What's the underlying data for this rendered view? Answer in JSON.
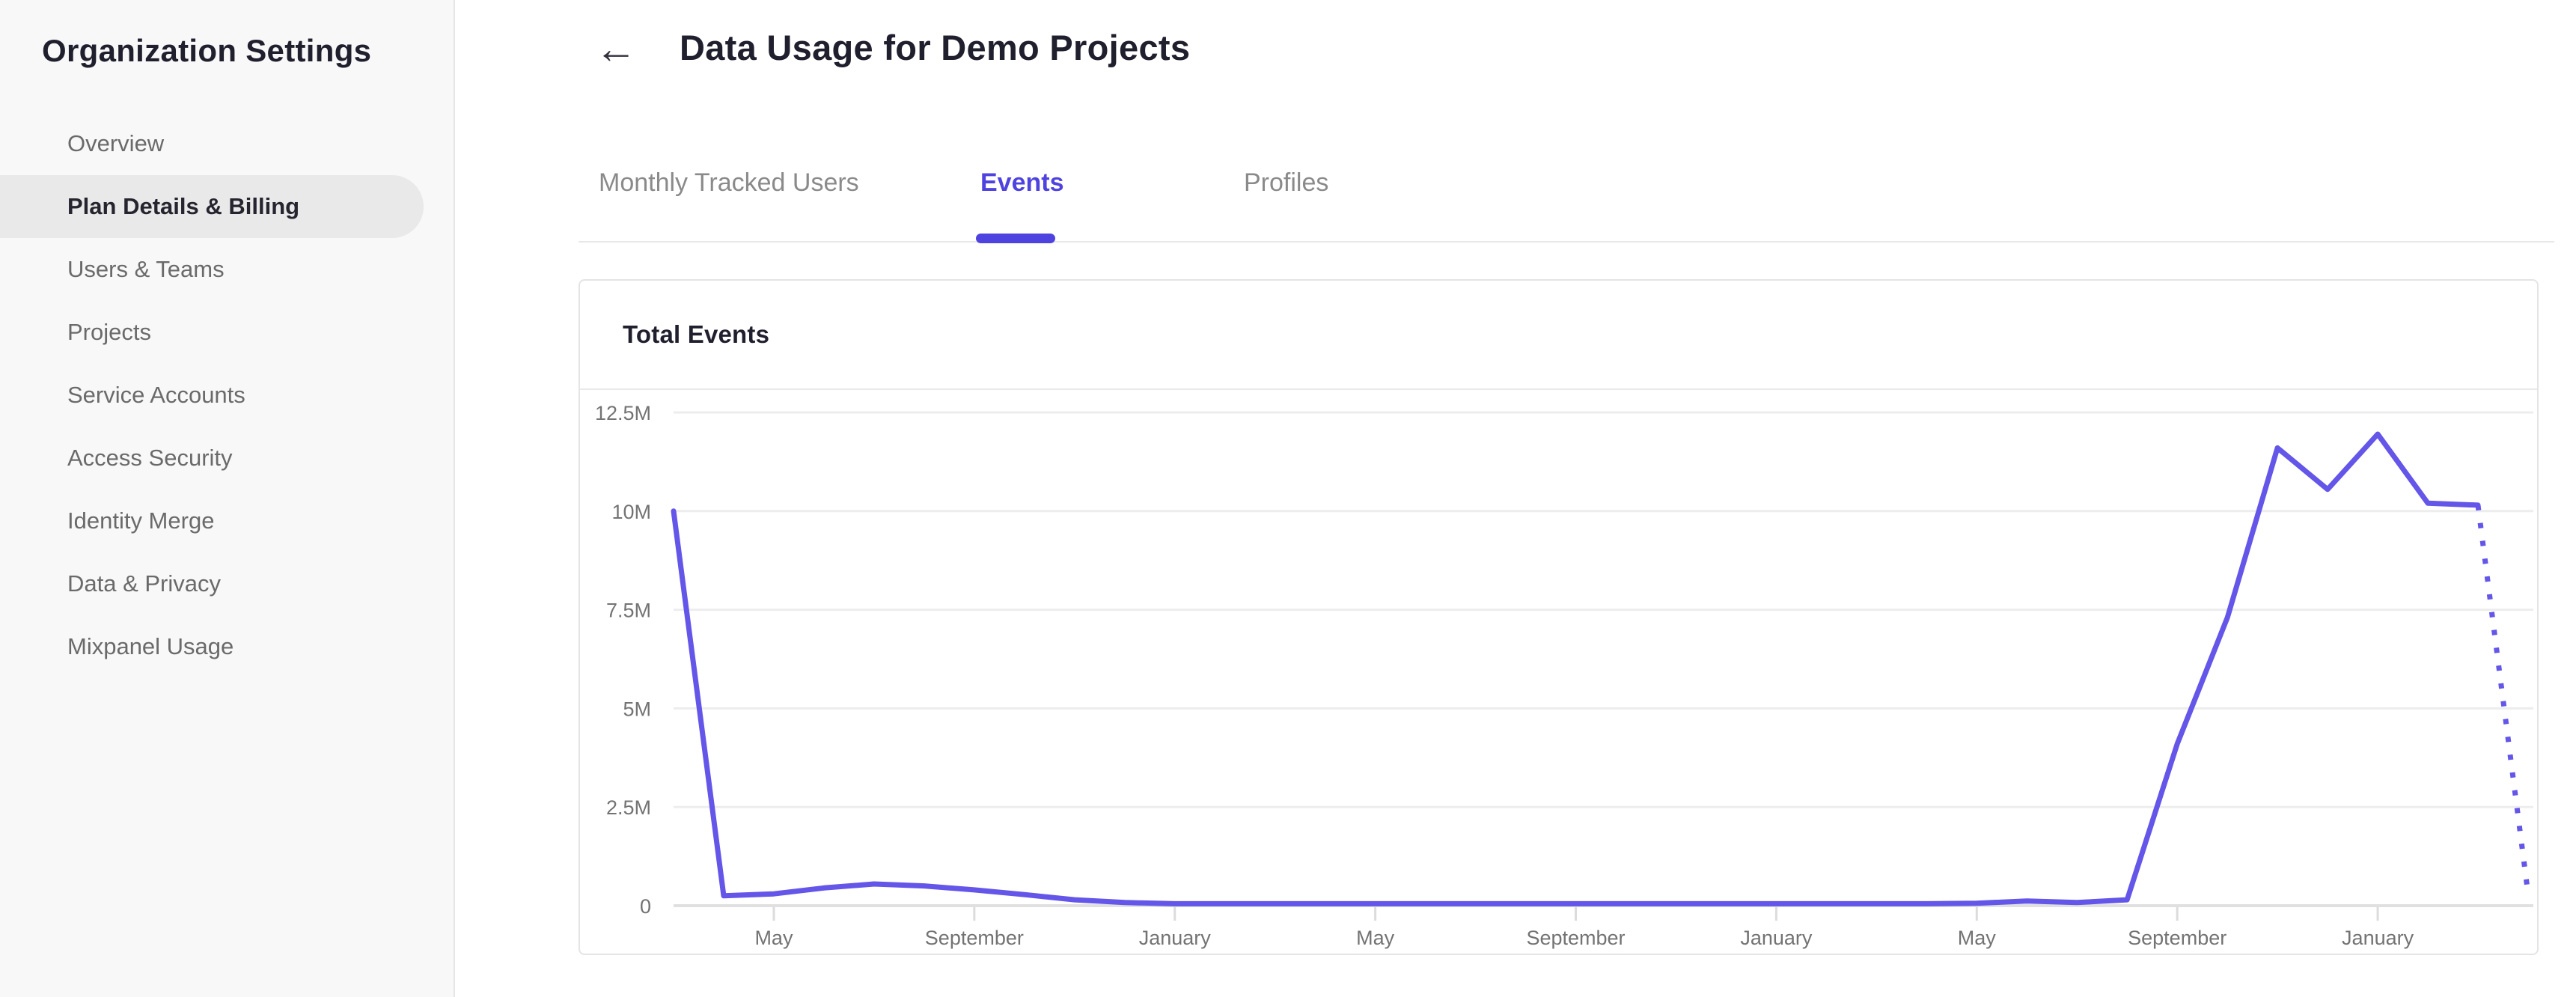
{
  "sidebar": {
    "title": "Organization Settings",
    "items": [
      {
        "label": "Overview",
        "selected": false
      },
      {
        "label": "Plan Details & Billing",
        "selected": true
      },
      {
        "label": "Users & Teams",
        "selected": false
      },
      {
        "label": "Projects",
        "selected": false
      },
      {
        "label": "Service Accounts",
        "selected": false
      },
      {
        "label": "Access Security",
        "selected": false
      },
      {
        "label": "Identity Merge",
        "selected": false
      },
      {
        "label": "Data & Privacy",
        "selected": false
      },
      {
        "label": "Mixpanel Usage",
        "selected": false
      }
    ]
  },
  "header": {
    "back_icon": "←",
    "title": "Data Usage for Demo Projects"
  },
  "tabs": [
    {
      "label": "Monthly Tracked Users",
      "active": false
    },
    {
      "label": "Events",
      "active": true
    },
    {
      "label": "Profiles",
      "active": false
    }
  ],
  "card": {
    "title": "Total Events"
  },
  "chart_data": {
    "type": "line",
    "title": "Total Events",
    "ylabel": "",
    "xlabel": "",
    "unit": "events (millions)",
    "ylim_millions": [
      0,
      12.5
    ],
    "grid": true,
    "legend": false,
    "line_color": "#6356e8",
    "grid_color": "#ededed",
    "axis_line_color": "#e0e0e0",
    "label_color": "#737373",
    "x_months": [
      "Mar",
      "Apr",
      "May",
      "Jun",
      "Jul",
      "Aug",
      "Sep",
      "Oct",
      "Nov",
      "Dec",
      "Jan",
      "Feb",
      "Mar",
      "Apr",
      "May",
      "Jun",
      "Jul",
      "Aug",
      "Sep",
      "Oct",
      "Nov",
      "Dec",
      "Jan",
      "Feb",
      "Mar",
      "Apr",
      "May",
      "Jun",
      "Jul",
      "Aug",
      "Sep",
      "Oct",
      "Nov",
      "Dec",
      "Jan",
      "Feb",
      "Mar",
      "Apr"
    ],
    "series": [
      {
        "name": "Total Events",
        "values_millions": [
          10.0,
          0.25,
          0.3,
          0.45,
          0.55,
          0.5,
          0.4,
          0.28,
          0.15,
          0.08,
          0.05,
          0.05,
          0.05,
          0.05,
          0.05,
          0.05,
          0.05,
          0.05,
          0.05,
          0.05,
          0.05,
          0.05,
          0.05,
          0.05,
          0.05,
          0.05,
          0.06,
          0.12,
          0.08,
          0.15,
          4.1,
          7.3,
          11.6,
          10.55,
          11.95,
          10.2,
          10.15,
          0.3
        ],
        "dotted_tail_segments": 1
      }
    ],
    "y_tick_values": [
      0,
      2.5,
      5,
      7.5,
      10,
      12.5
    ],
    "y_tick_labels": [
      "0",
      "2.5M",
      "5M",
      "7.5M",
      "10M",
      "12.5M"
    ],
    "x_tick_indices": [
      2,
      6,
      10,
      14,
      18,
      22,
      26,
      30,
      34
    ],
    "x_tick_labels": [
      "May",
      "September",
      "January",
      "May",
      "September",
      "January",
      "May",
      "September",
      "January"
    ]
  }
}
